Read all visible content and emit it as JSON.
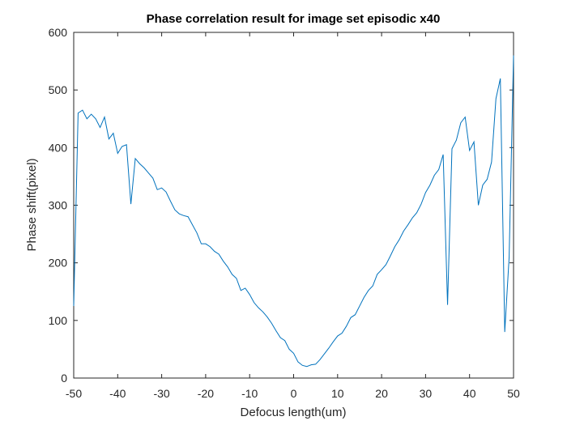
{
  "chart_data": {
    "type": "line",
    "title": "Phase correlation result for image set episodic x40",
    "x_label": "Defocus length(um)",
    "y_label": "Phase shift(pixel)",
    "x": [
      -50,
      -49,
      -48,
      -47,
      -46,
      -45,
      -44,
      -43,
      -42,
      -41,
      -40,
      -39,
      -38,
      -37,
      -36,
      -35,
      -34,
      -33,
      -32,
      -31,
      -30,
      -29,
      -28,
      -27,
      -26,
      -25,
      -24,
      -23,
      -22,
      -21,
      -20,
      -19,
      -18,
      -17,
      -16,
      -15,
      -14,
      -13,
      -12,
      -11,
      -10,
      -9,
      -8,
      -7,
      -6,
      -5,
      -4,
      -3,
      -2,
      -1,
      0,
      1,
      2,
      3,
      4,
      5,
      6,
      7,
      8,
      9,
      10,
      11,
      12,
      13,
      14,
      15,
      16,
      17,
      18,
      19,
      20,
      21,
      22,
      23,
      24,
      25,
      26,
      27,
      28,
      29,
      30,
      31,
      32,
      33,
      34,
      35,
      36,
      37,
      38,
      39,
      40,
      41,
      42,
      43,
      44,
      45,
      46,
      47,
      48,
      49,
      50
    ],
    "series": [
      {
        "name": "Phase shift",
        "color": "#0072bd",
        "values": [
          125,
          460,
          465,
          450,
          458,
          450,
          435,
          453,
          415,
          425,
          390,
          402,
          405,
          302,
          381,
          372,
          365,
          356,
          347,
          327,
          330,
          323,
          307,
          292,
          285,
          282,
          280,
          266,
          252,
          233,
          233,
          228,
          220,
          215,
          203,
          193,
          180,
          173,
          152,
          156,
          145,
          131,
          122,
          115,
          106,
          95,
          82,
          70,
          65,
          50,
          43,
          28,
          22,
          20,
          23,
          24,
          32,
          42,
          52,
          63,
          73,
          78,
          90,
          105,
          110,
          125,
          140,
          152,
          160,
          180,
          188,
          197,
          212,
          228,
          240,
          255,
          266,
          278,
          287,
          302,
          322,
          335,
          352,
          362,
          388,
          127,
          398,
          413,
          443,
          453,
          395,
          410,
          300,
          335,
          345,
          375,
          485,
          520,
          80,
          210,
          560
        ]
      }
    ],
    "xlim": [
      -50,
      50
    ],
    "ylim": [
      0,
      600
    ],
    "xticks": [
      -50,
      -40,
      -30,
      -20,
      -10,
      0,
      10,
      20,
      30,
      40,
      50
    ],
    "yticks": [
      0,
      100,
      200,
      300,
      400,
      500,
      600
    ]
  }
}
